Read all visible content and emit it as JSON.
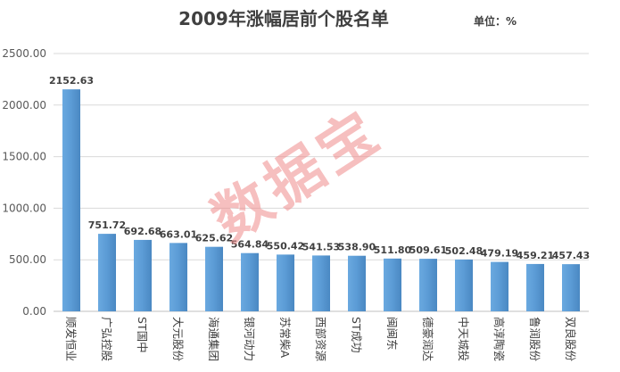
{
  "chart_data": {
    "type": "bar",
    "title": "2009年涨幅居前个股名单",
    "unit_label": "单位：%",
    "categories": [
      "顺发恒业",
      "广弘控股",
      "ST国中",
      "大元股份",
      "海通集团",
      "银河动力",
      "苏常柴A",
      "西部资源",
      "ST成功",
      "闽闽东",
      "德豪润达",
      "中天城投",
      "高淳陶瓷",
      "鲁润股份",
      "双良股份"
    ],
    "values": [
      2152.63,
      751.72,
      692.68,
      663.01,
      625.62,
      564.84,
      550.42,
      541.53,
      538.9,
      511.8,
      509.61,
      502.48,
      479.19,
      459.21,
      457.43
    ],
    "value_labels": [
      "2152.63",
      "751.72",
      "692.68",
      "663.01",
      "625.62",
      "564.84",
      "550.42",
      "541.53",
      "538.90",
      "511.80",
      "509.61",
      "502.48",
      "479.19",
      "459.21",
      "457.43"
    ],
    "yticks": [
      "0.00",
      "500.00",
      "1000.00",
      "1500.00",
      "2000.00",
      "2500.00"
    ],
    "ylim": [
      0,
      2500
    ],
    "grid": true,
    "bar_color": "#5b9bd5",
    "watermark": "数据宝"
  }
}
